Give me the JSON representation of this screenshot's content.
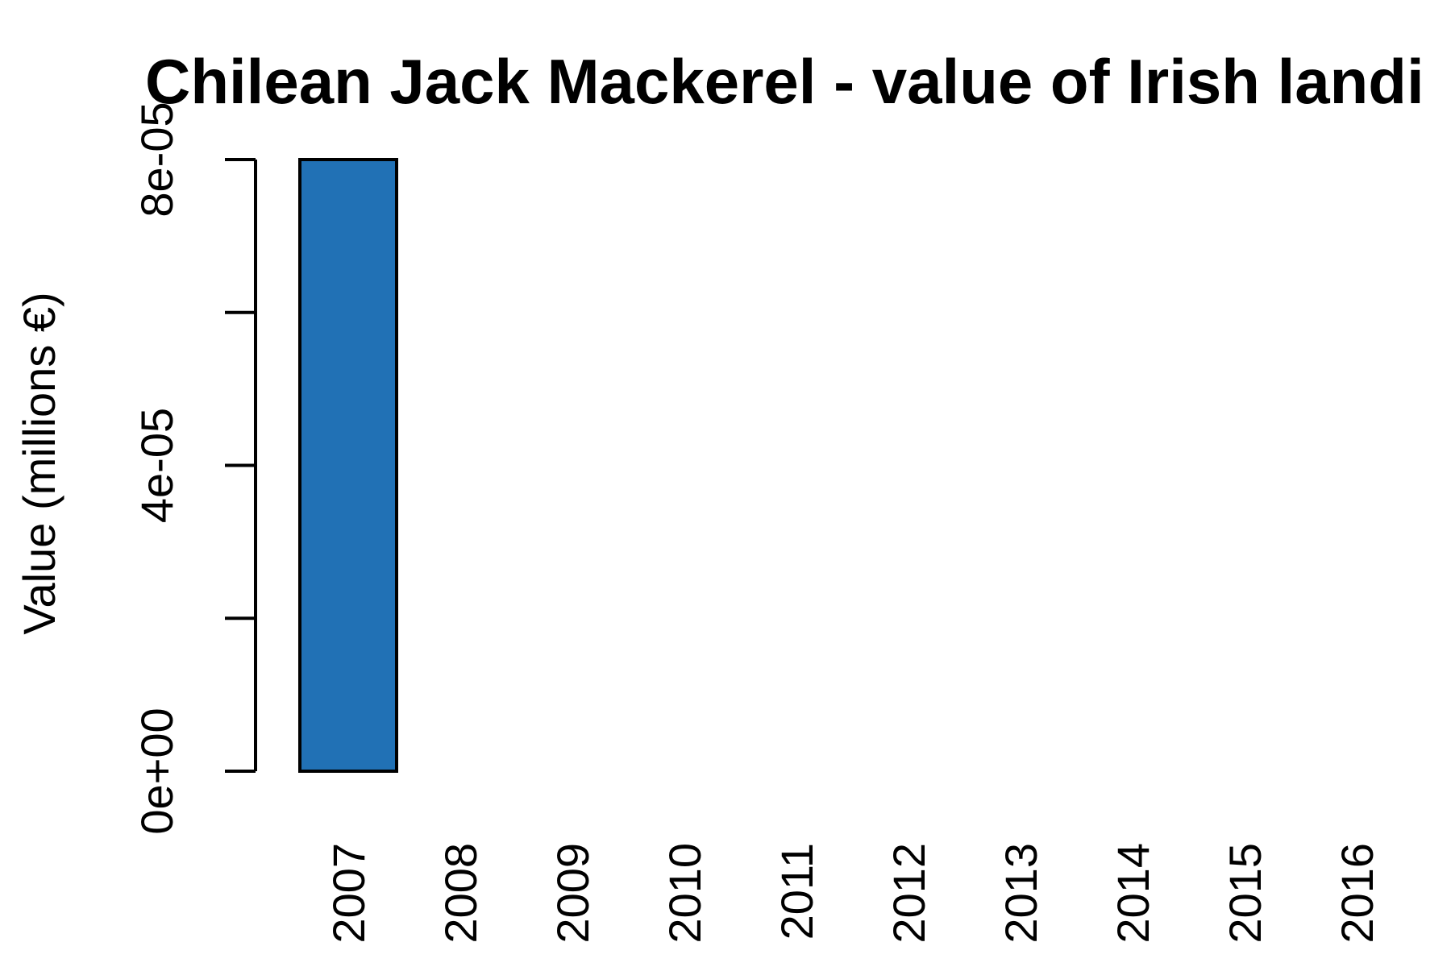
{
  "chart_data": {
    "type": "bar",
    "title": "Chilean Jack Mackerel - value of Irish landi",
    "xlabel": "",
    "ylabel": "Value (millions €)",
    "categories": [
      "2007",
      "2008",
      "2009",
      "2010",
      "2011",
      "2012",
      "2013",
      "2014",
      "2015",
      "2016"
    ],
    "values": [
      8e-05,
      0,
      0,
      0,
      0,
      0,
      0,
      0,
      0,
      0
    ],
    "ylim": [
      0,
      8e-05
    ],
    "yticks": [
      0,
      2e-05,
      4e-05,
      6e-05,
      8e-05
    ],
    "ytick_labels": [
      "0e+00",
      "",
      "4e-05",
      "",
      "8e-05"
    ],
    "bar_color": "#2171b5",
    "bar_edge_color": "#000000",
    "grid": false,
    "legend": "none"
  }
}
